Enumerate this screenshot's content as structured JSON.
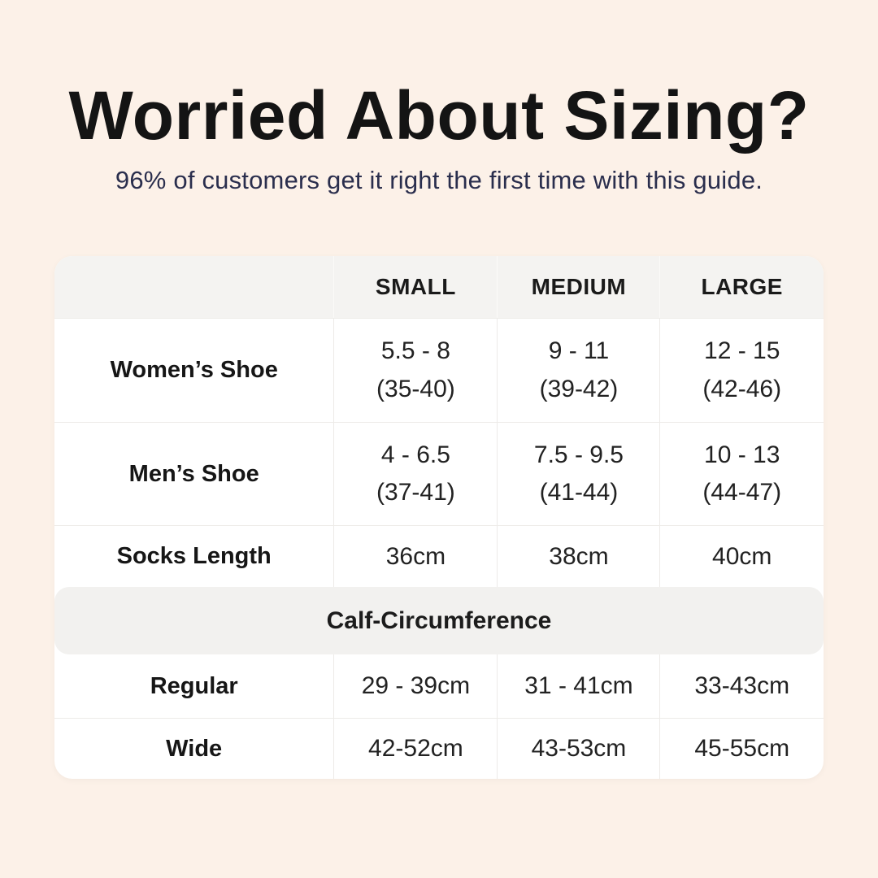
{
  "page": {
    "title": "Worried About Sizing?",
    "subtitle": "96% of customers get it right the first time with this guide.",
    "background_color": "#FCF1E8",
    "title_color": "#141414",
    "subtitle_color": "#2A2E4D"
  },
  "table": {
    "columns": [
      "",
      "SMALL",
      "MEDIUM",
      "LARGE"
    ],
    "body_rows": [
      {
        "label": "Women’s Shoe",
        "cells": [
          {
            "line1": "5.5 - 8",
            "line2": "(35-40)"
          },
          {
            "line1": "9 - 11",
            "line2": "(39-42)"
          },
          {
            "line1": "12 - 15",
            "line2": "(42-46)"
          }
        ]
      },
      {
        "label": "Men’s Shoe",
        "cells": [
          {
            "line1": "4 - 6.5",
            "line2": "(37-41)"
          },
          {
            "line1": "7.5 - 9.5",
            "line2": "(41-44)"
          },
          {
            "line1": "10 - 13",
            "line2": "(44-47)"
          }
        ]
      },
      {
        "label": "Socks Length",
        "cells": [
          {
            "line1": "36cm"
          },
          {
            "line1": "38cm"
          },
          {
            "line1": "40cm"
          }
        ]
      }
    ],
    "section_header": "Calf-Circumference",
    "calf_rows": [
      {
        "label": "Regular",
        "cells": [
          "29 - 39cm",
          "31 - 41cm",
          "33-43cm"
        ]
      },
      {
        "label": "Wide",
        "cells": [
          "42-52cm",
          "43-53cm",
          "45-55cm"
        ]
      }
    ],
    "colors": {
      "table_bg": "#FFFFFF",
      "header_bg": "#F4F3F1",
      "band_bg": "#F2F1EF",
      "border": "#EDEBE8"
    }
  }
}
